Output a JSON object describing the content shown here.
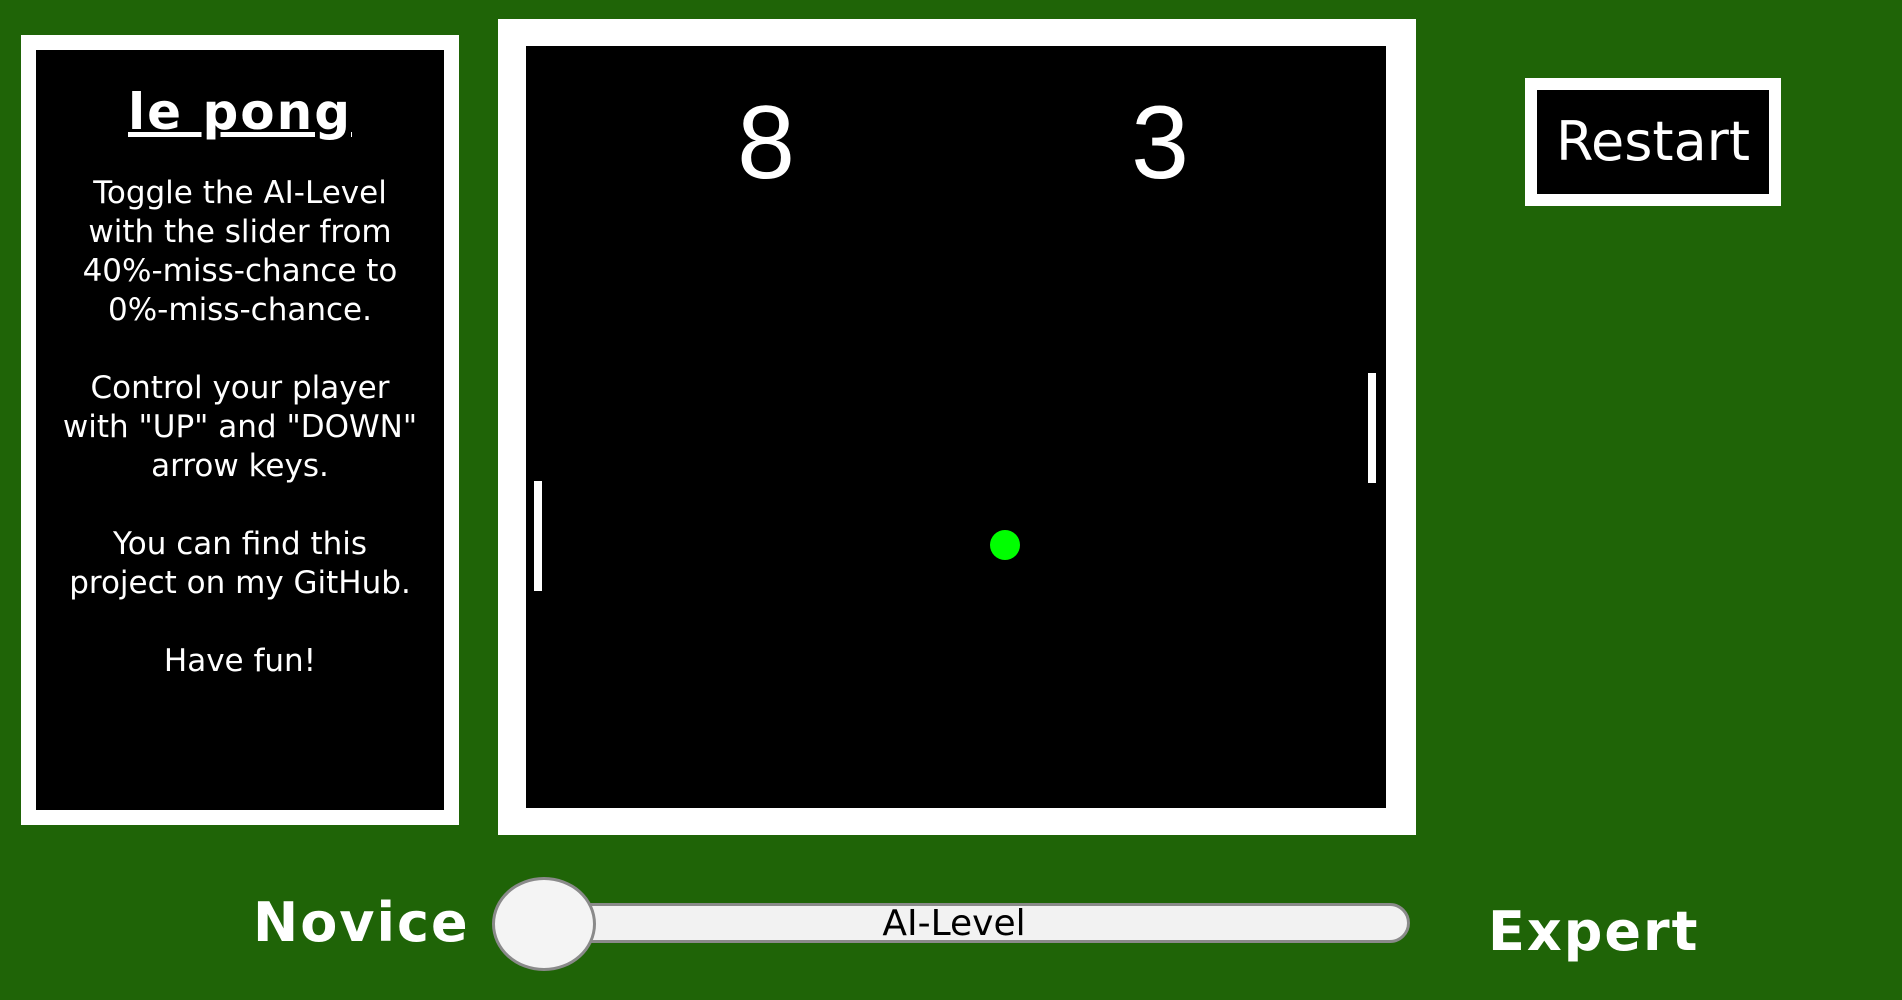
{
  "info": {
    "title": "le pong",
    "paragraphs": [
      "Toggle the AI-Level with the slider from 40%-miss-chance to 0%-miss-chance.",
      "Control your player with \"UP\" and \"DOWN\" arrow keys.",
      "You can find this project on my GitHub.",
      "Have fun!"
    ]
  },
  "game": {
    "score_left": "8",
    "score_right": "3",
    "ball_color": "#00ff00",
    "background_color": "#1f6407"
  },
  "controls": {
    "restart_label": "Restart",
    "slider_label": "AI-Level",
    "min_label": "Novice",
    "max_label": "Expert",
    "slider_value": 0
  }
}
